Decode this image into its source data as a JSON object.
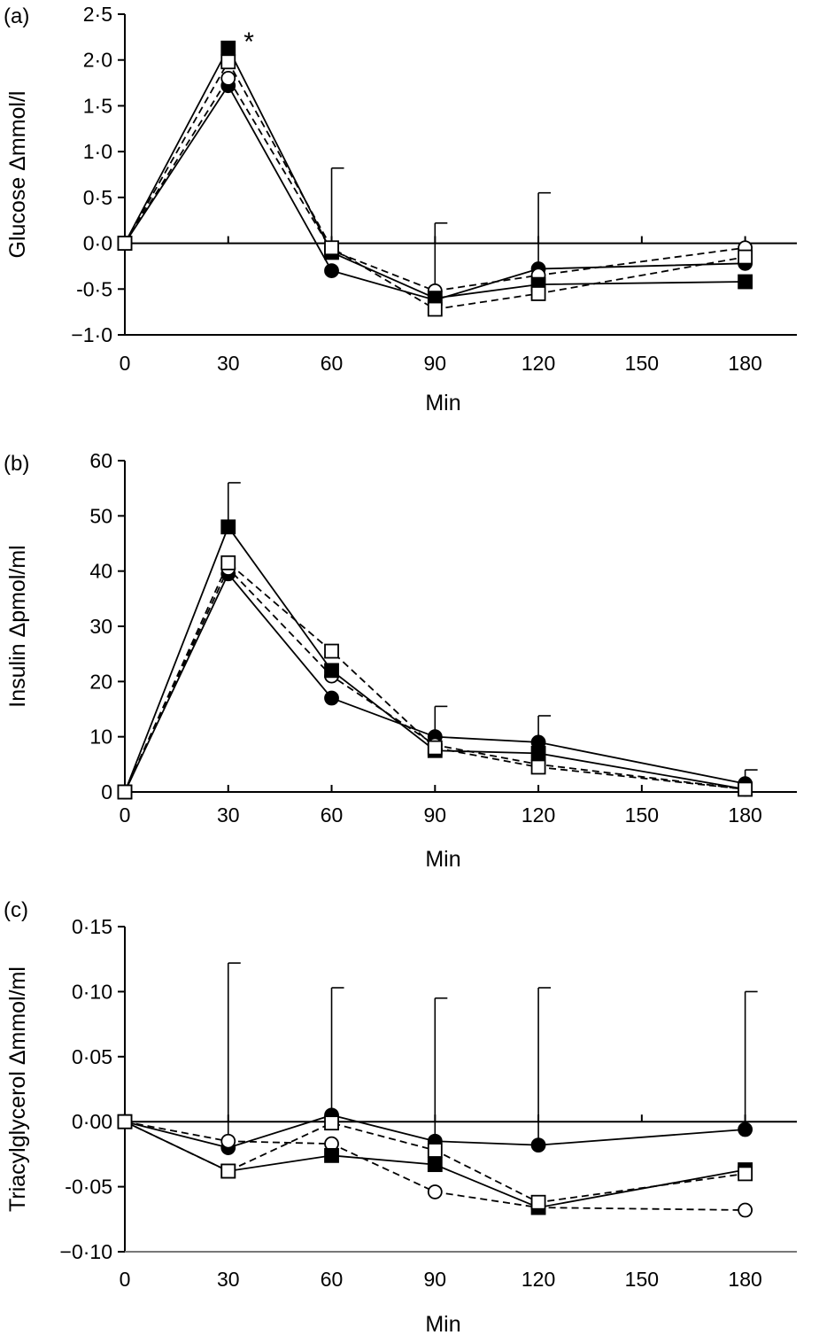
{
  "chart_data": [
    {
      "type": "line",
      "panel_label": "(a)",
      "xlabel": "Min",
      "ylabel": "Glucose Δmmol/l",
      "x": [
        0,
        30,
        60,
        90,
        120,
        180
      ],
      "xticks": [
        0,
        30,
        60,
        90,
        120,
        150,
        180
      ],
      "xtick_labels": [
        "0",
        "30",
        "60",
        "90",
        "120",
        "150",
        "180"
      ],
      "xlim": [
        0,
        195
      ],
      "ylim": [
        -1.0,
        2.5
      ],
      "yticks": [
        2.5,
        2.0,
        1.5,
        1.0,
        0.5,
        0.0,
        -0.5,
        -1.0
      ],
      "ytick_labels": [
        "2·5",
        "2·0",
        "1·5",
        "1·0",
        "0·5",
        "0·0",
        "-0·5",
        "−1·0"
      ],
      "zero_line": true,
      "grid": false,
      "annotations": [
        {
          "text": "*",
          "x": 36,
          "y": 2.22
        }
      ],
      "series": [
        {
          "marker": "circle",
          "fill": "#000000",
          "line": "solid",
          "values": [
            0.0,
            1.72,
            -0.3,
            -0.62,
            -0.28,
            -0.22
          ]
        },
        {
          "marker": "circle",
          "fill": "#ffffff",
          "line": "dashed",
          "values": [
            0.0,
            1.8,
            -0.08,
            -0.52,
            -0.35,
            -0.05
          ]
        },
        {
          "marker": "square",
          "fill": "#000000",
          "line": "solid",
          "values": [
            0.0,
            2.13,
            -0.1,
            -0.6,
            -0.45,
            -0.42
          ]
        },
        {
          "marker": "square",
          "fill": "#ffffff",
          "line": "dashed",
          "values": [
            0.0,
            1.98,
            -0.05,
            -0.72,
            -0.55,
            -0.15
          ]
        }
      ],
      "error_bars": [
        {
          "x": 60,
          "y": -0.05,
          "upper": 0.82
        },
        {
          "x": 90,
          "y": -0.55,
          "upper": 0.22
        },
        {
          "x": 120,
          "y": -0.3,
          "upper": 0.55
        }
      ]
    },
    {
      "type": "line",
      "panel_label": "(b)",
      "xlabel": "Min",
      "ylabel": "Insulin Δpmol/ml",
      "x": [
        0,
        30,
        60,
        90,
        120,
        180
      ],
      "xticks": [
        0,
        30,
        60,
        90,
        120,
        150,
        180
      ],
      "xtick_labels": [
        "0",
        "30",
        "60",
        "90",
        "120",
        "150",
        "180"
      ],
      "xlim": [
        0,
        195
      ],
      "ylim": [
        0,
        60
      ],
      "yticks": [
        60,
        50,
        40,
        30,
        20,
        10,
        0
      ],
      "ytick_labels": [
        "60",
        "50",
        "40",
        "30",
        "20",
        "10",
        "0"
      ],
      "zero_line": false,
      "grid": false,
      "annotations": [],
      "series": [
        {
          "marker": "circle",
          "fill": "#000000",
          "line": "solid",
          "values": [
            0,
            39.5,
            17.0,
            10.0,
            9.0,
            1.5
          ]
        },
        {
          "marker": "circle",
          "fill": "#ffffff",
          "line": "dashed",
          "values": [
            0,
            40.5,
            21.0,
            8.5,
            5.0,
            0.5
          ]
        },
        {
          "marker": "square",
          "fill": "#000000",
          "line": "solid",
          "values": [
            0,
            48.0,
            22.0,
            7.5,
            7.0,
            0.5
          ]
        },
        {
          "marker": "square",
          "fill": "#ffffff",
          "line": "dashed",
          "values": [
            0,
            41.5,
            25.5,
            8.0,
            4.5,
            0.5
          ]
        }
      ],
      "error_bars": [
        {
          "x": 30,
          "y": 48.0,
          "upper": 56.0
        },
        {
          "x": 90,
          "y": 10.0,
          "upper": 15.5
        },
        {
          "x": 120,
          "y": 9.0,
          "upper": 13.8
        },
        {
          "x": 180,
          "y": 1.5,
          "upper": 4.0
        }
      ]
    },
    {
      "type": "line",
      "panel_label": "(c)",
      "xlabel": "Min",
      "ylabel": "Triacylglycerol Δmmol/ml",
      "x": [
        0,
        30,
        60,
        90,
        120,
        180
      ],
      "xticks": [
        0,
        30,
        60,
        90,
        120,
        150,
        180
      ],
      "xtick_labels": [
        "0",
        "30",
        "60",
        "90",
        "120",
        "150",
        "180"
      ],
      "xlim": [
        0,
        195
      ],
      "ylim": [
        -0.1,
        0.15
      ],
      "yticks": [
        0.15,
        0.1,
        0.05,
        0.0,
        -0.05,
        -0.1
      ],
      "ytick_labels": [
        "0·15",
        "0·10",
        "0·05",
        "0·00",
        "-0·05",
        "−0·10"
      ],
      "zero_line": true,
      "grid": false,
      "annotations": [],
      "series": [
        {
          "marker": "circle",
          "fill": "#000000",
          "line": "solid",
          "values": [
            0.0,
            -0.02,
            0.005,
            -0.015,
            -0.018,
            -0.006
          ]
        },
        {
          "marker": "circle",
          "fill": "#ffffff",
          "line": "dashed",
          "values": [
            0.0,
            -0.015,
            -0.017,
            -0.054,
            -0.066,
            -0.068
          ]
        },
        {
          "marker": "square",
          "fill": "#000000",
          "line": "solid",
          "values": [
            0.0,
            -0.038,
            -0.026,
            -0.033,
            -0.066,
            -0.037
          ]
        },
        {
          "marker": "square",
          "fill": "#ffffff",
          "line": "dashed",
          "values": [
            0.0,
            -0.038,
            -0.001,
            -0.022,
            -0.062,
            -0.04
          ]
        }
      ],
      "error_bars": [
        {
          "x": 30,
          "y": -0.02,
          "upper": 0.122
        },
        {
          "x": 60,
          "y": 0.005,
          "upper": 0.103
        },
        {
          "x": 90,
          "y": -0.015,
          "upper": 0.095
        },
        {
          "x": 120,
          "y": -0.018,
          "upper": 0.103
        },
        {
          "x": 180,
          "y": -0.006,
          "upper": 0.1
        }
      ]
    }
  ]
}
